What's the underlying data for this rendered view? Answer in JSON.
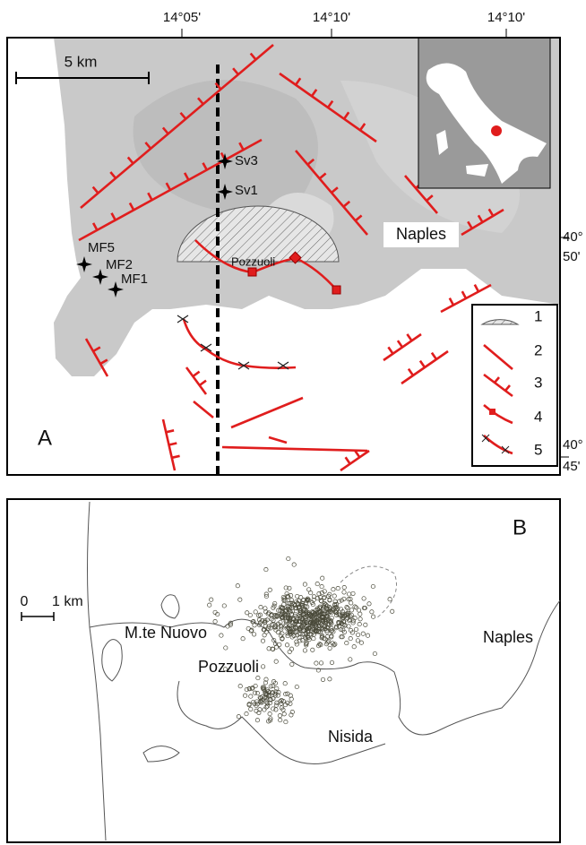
{
  "panel_a": {
    "label": "A",
    "lon_labels": [
      "14°05'",
      "14°10'",
      "14°10'"
    ],
    "lat_labels": [
      {
        "deg": "40°",
        "min": "50'"
      },
      {
        "deg": "40°",
        "min": "45'"
      }
    ],
    "scale": "5 km",
    "stations": [
      "Sv3",
      "Sv1",
      "MF5",
      "MF2",
      "MF1"
    ],
    "places": [
      "Pozzuoli",
      "Naples"
    ],
    "legend": [
      "1",
      "2",
      "3",
      "4",
      "5"
    ]
  },
  "panel_b": {
    "label": "B",
    "scale": [
      "0",
      "1 km"
    ],
    "places": [
      "M.te Nuovo",
      "Pozzuoli",
      "Naples",
      "Nisida"
    ]
  }
}
